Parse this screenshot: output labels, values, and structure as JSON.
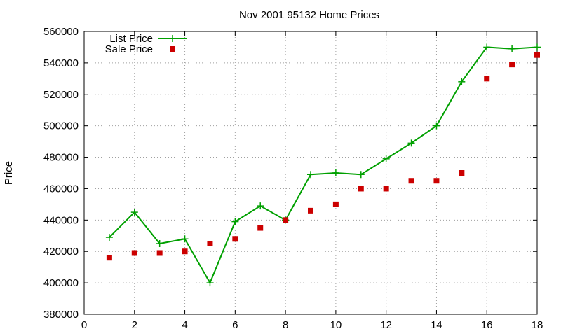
{
  "chart_data": {
    "type": "line",
    "title": "Nov 2001 95132 Home Prices",
    "xlabel": "",
    "ylabel": "Price",
    "xlim": [
      0,
      18
    ],
    "ylim": [
      380000,
      560000
    ],
    "x_ticks": [
      0,
      2,
      4,
      6,
      8,
      10,
      12,
      14,
      16,
      18
    ],
    "y_ticks": [
      380000,
      400000,
      420000,
      440000,
      460000,
      480000,
      500000,
      520000,
      540000,
      560000
    ],
    "grid": true,
    "legend_position": "top-left",
    "series": [
      {
        "name": "List Price",
        "style": "line-with-plus-markers",
        "color": "#00a000",
        "x": [
          1,
          2,
          3,
          4,
          5,
          6,
          7,
          8,
          9,
          10,
          11,
          12,
          13,
          14,
          15,
          16,
          17,
          18
        ],
        "values": [
          429000,
          445000,
          425000,
          428000,
          400000,
          439000,
          449000,
          440000,
          469000,
          470000,
          469000,
          479000,
          489000,
          500000,
          528000,
          550000,
          549000,
          550000
        ]
      },
      {
        "name": "Sale Price",
        "style": "square-markers",
        "color": "#cc0000",
        "x": [
          1,
          2,
          3,
          4,
          5,
          6,
          7,
          8,
          9,
          10,
          11,
          12,
          13,
          14,
          15,
          16,
          17,
          18
        ],
        "values": [
          416000,
          419000,
          419000,
          420000,
          425000,
          428000,
          435000,
          440000,
          446000,
          450000,
          460000,
          460000,
          465000,
          465000,
          470000,
          530000,
          539000,
          545000
        ]
      }
    ]
  }
}
